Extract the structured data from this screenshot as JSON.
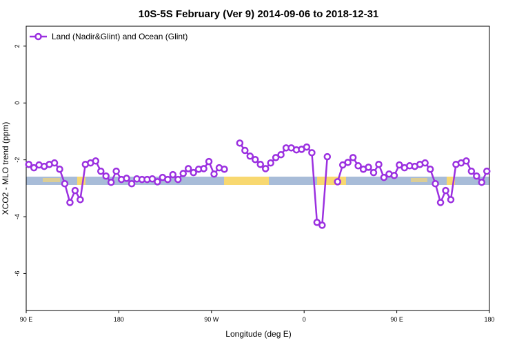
{
  "chart_data": {
    "type": "line",
    "title": "10S-5S February (Ver 9)   2014-09-06 to 2018-12-31",
    "x_label": "Longitude (deg E)",
    "y_label": "XCO2 - MLO trend (ppm)",
    "xlim": [
      90,
      540
    ],
    "ylim": [
      -7.3,
      2.7
    ],
    "xticks": [
      {
        "value": 90,
        "label": "90 E"
      },
      180,
      {
        "value": 270,
        "label": "90 W"
      },
      {
        "value": 360,
        "label": "0"
      },
      {
        "value": 450,
        "label": "90 E"
      },
      {
        "value": 540,
        "label": "180"
      }
    ],
    "yticks": [
      2,
      0,
      -2,
      -4,
      -6
    ],
    "legend": "top-left",
    "x": [
      92.5,
      97.5,
      102.5,
      107.5,
      112.5,
      117.5,
      122.5,
      127.5,
      132.5,
      137.5,
      142.5,
      147.5,
      152.5,
      157.5,
      162.5,
      167.5,
      172.5,
      177.5,
      182.5,
      187.5,
      192.5,
      197.5,
      202.5,
      207.5,
      212.5,
      217.5,
      222.5,
      227.5,
      232.5,
      237.5,
      242.5,
      247.5,
      252.5,
      257.5,
      262.5,
      267.5,
      272.5,
      277.5,
      282.5,
      287.5,
      292.5,
      297.5,
      302.5,
      307.5,
      312.5,
      317.5,
      322.5,
      327.5,
      332.5,
      337.5,
      342.5,
      347.5,
      352.5,
      357.5,
      362.5,
      367.5,
      372.5,
      377.5,
      382.5,
      387.5,
      392.5,
      397.5,
      402.5,
      407.5,
      412.5,
      417.5,
      422.5,
      427.5,
      432.5,
      437.5,
      442.5,
      447.5,
      452.5,
      457.5,
      462.5,
      467.5,
      472.5,
      477.5,
      482.5,
      487.5,
      492.5,
      497.5,
      502.5,
      507.5,
      512.5,
      517.5,
      522.5,
      527.5,
      532.5,
      537.5
    ],
    "series": [
      {
        "name": "Land (Nadir&Glint) and Ocean (Glint)",
        "color": "#9b30e0",
        "values": [
          -2.16,
          -2.28,
          -2.18,
          -2.23,
          -2.16,
          -2.11,
          -2.33,
          -2.84,
          -3.5,
          -3.08,
          -3.4,
          -2.16,
          -2.11,
          -2.04,
          -2.4,
          -2.57,
          -2.79,
          -2.4,
          -2.69,
          -2.65,
          -2.84,
          -2.67,
          -2.69,
          -2.69,
          -2.67,
          -2.77,
          -2.62,
          -2.69,
          -2.52,
          -2.69,
          -2.48,
          -2.31,
          -2.45,
          -2.33,
          -2.31,
          -2.06,
          -2.5,
          -2.28,
          -2.33,
          null,
          null,
          -1.41,
          -1.67,
          -1.87,
          -1.99,
          -2.16,
          -2.31,
          -2.11,
          -1.92,
          -1.82,
          -1.58,
          -1.58,
          -1.65,
          -1.63,
          -1.55,
          -1.75,
          -4.2,
          -4.3,
          -1.89,
          null,
          -2.77,
          -2.18,
          -2.09,
          -1.92,
          -2.21,
          -2.33,
          -2.26,
          -2.45,
          -2.16,
          -2.62,
          -2.5,
          -2.55,
          -2.18,
          -2.28,
          -2.21,
          -2.23,
          -2.16,
          -2.11,
          -2.33,
          -2.84,
          -3.5,
          -3.08,
          -3.4,
          -2.16,
          -2.11,
          -2.04,
          -2.4,
          -2.57,
          -2.79,
          -2.4
        ]
      }
    ]
  }
}
